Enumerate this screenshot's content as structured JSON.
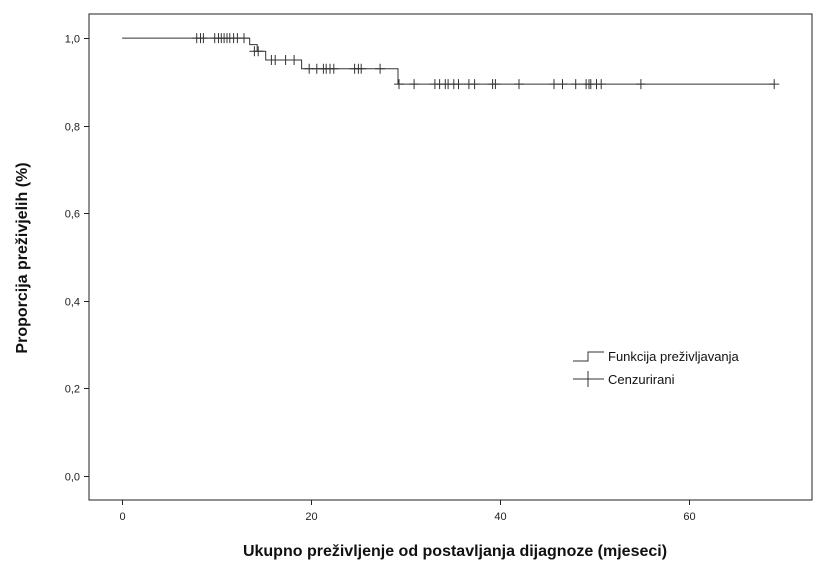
{
  "chart_data": {
    "type": "line",
    "title": "",
    "xlabel": "Ukupno preživljenje od postavljanja dijagnoze (mjeseci)",
    "ylabel": "Proporcija preživjelih (%)",
    "xlim": [
      -3.5,
      73
    ],
    "ylim": [
      -0.055,
      1.055
    ],
    "xticks": [
      0,
      20,
      40,
      60
    ],
    "xtick_labels": [
      "0",
      "20",
      "40",
      "60"
    ],
    "yticks": [
      0.0,
      0.2,
      0.4,
      0.6,
      0.8,
      1.0
    ],
    "ytick_labels": [
      "0,0",
      "0,2",
      "0,4",
      "0,6",
      "0,8",
      "1,0"
    ],
    "grid": false,
    "legend_position": "right",
    "series": [
      {
        "name": "Funkcija preživljavanja",
        "kind": "step",
        "x": [
          0,
          13.5,
          14.3,
          15.2,
          19.0,
          29.2,
          69.0
        ],
        "y": [
          1.0,
          0.985,
          0.97,
          0.95,
          0.93,
          0.895,
          0.895
        ]
      },
      {
        "name": "Cenzurirani",
        "kind": "censor",
        "points": [
          [
            7.9,
            1.0
          ],
          [
            8.3,
            1.0
          ],
          [
            8.6,
            1.0
          ],
          [
            9.8,
            1.0
          ],
          [
            10.2,
            1.0
          ],
          [
            10.5,
            1.0
          ],
          [
            10.8,
            1.0
          ],
          [
            11.1,
            1.0
          ],
          [
            11.4,
            1.0
          ],
          [
            11.8,
            1.0
          ],
          [
            12.2,
            1.0
          ],
          [
            12.9,
            1.0
          ],
          [
            14.0,
            0.97
          ],
          [
            14.4,
            0.97
          ],
          [
            15.8,
            0.95
          ],
          [
            16.2,
            0.95
          ],
          [
            17.3,
            0.95
          ],
          [
            18.2,
            0.95
          ],
          [
            19.8,
            0.93
          ],
          [
            20.6,
            0.93
          ],
          [
            21.3,
            0.93
          ],
          [
            21.6,
            0.93
          ],
          [
            22.0,
            0.93
          ],
          [
            22.4,
            0.93
          ],
          [
            24.6,
            0.93
          ],
          [
            25.0,
            0.93
          ],
          [
            25.3,
            0.93
          ],
          [
            27.3,
            0.93
          ],
          [
            29.3,
            0.895
          ],
          [
            30.9,
            0.895
          ],
          [
            33.1,
            0.895
          ],
          [
            33.6,
            0.895
          ],
          [
            34.2,
            0.895
          ],
          [
            34.5,
            0.895
          ],
          [
            35.1,
            0.895
          ],
          [
            35.6,
            0.895
          ],
          [
            36.7,
            0.895
          ],
          [
            37.3,
            0.895
          ],
          [
            39.2,
            0.895
          ],
          [
            39.5,
            0.895
          ],
          [
            42.0,
            0.895
          ],
          [
            45.7,
            0.895
          ],
          [
            46.6,
            0.895
          ],
          [
            48.0,
            0.895
          ],
          [
            49.1,
            0.895
          ],
          [
            49.4,
            0.895
          ],
          [
            49.6,
            0.895
          ],
          [
            50.2,
            0.895
          ],
          [
            50.7,
            0.895
          ],
          [
            54.9,
            0.895
          ],
          [
            69.0,
            0.895
          ]
        ]
      }
    ]
  }
}
